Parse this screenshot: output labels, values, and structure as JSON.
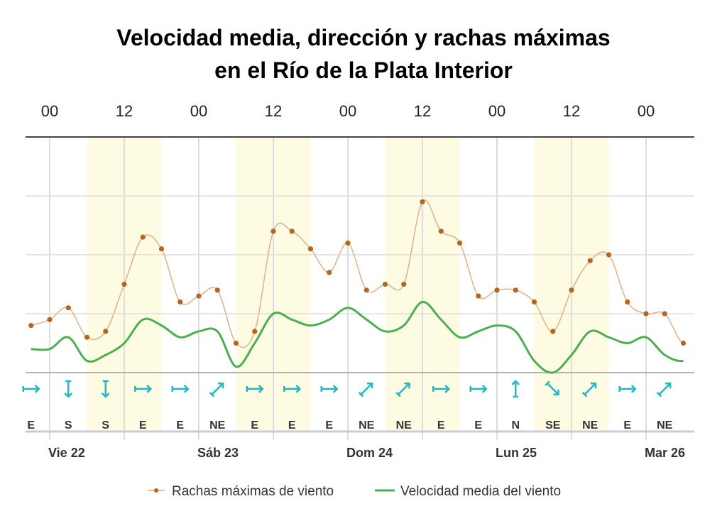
{
  "chart_data": {
    "type": "line",
    "title_lines": [
      "Velocidad media, dirección y rachas máximas",
      "en el Río de la Plata Interior"
    ],
    "hour_labels": [
      "00",
      "12",
      "00",
      "12",
      "00",
      "12",
      "00",
      "12",
      "00"
    ],
    "day_labels": [
      "Vie 22",
      "Sáb 23",
      "Dom 24",
      "Lun 25",
      "Mar 26"
    ],
    "x_hours": [
      -3,
      0,
      3,
      6,
      9,
      12,
      15,
      18,
      21,
      24,
      27,
      30,
      33,
      36,
      39,
      42,
      45,
      48,
      51,
      54,
      57,
      60,
      63,
      66,
      69,
      72,
      75,
      78,
      81,
      84,
      87,
      90,
      93,
      96,
      99,
      102,
      105,
      108,
      111
    ],
    "series": [
      {
        "name": "Rachas máximas de viento",
        "color": "#b5651d",
        "values": [
          8,
          9,
          11,
          6,
          7,
          15,
          23,
          21,
          12,
          13,
          14,
          5,
          7,
          24,
          24,
          21,
          17,
          22,
          14,
          15,
          15,
          29,
          24,
          22,
          13,
          14,
          14,
          12,
          7,
          14,
          19,
          20,
          12,
          10,
          10,
          5,
          8
        ]
      },
      {
        "name": "Velocidad media del viento",
        "color": "#4caf50",
        "values": [
          4,
          4,
          6,
          2,
          3,
          5,
          9,
          8,
          6,
          7,
          7,
          1,
          5,
          10,
          9,
          8,
          9,
          11,
          9,
          7,
          8,
          12,
          9,
          6,
          7,
          8,
          7,
          2,
          0,
          3,
          7,
          6,
          5,
          6,
          3,
          2,
          4
        ]
      }
    ],
    "directions": [
      {
        "dir": "E",
        "deg": 270
      },
      {
        "dir": "S",
        "deg": 0
      },
      {
        "dir": "S",
        "deg": 0
      },
      {
        "dir": "E",
        "deg": 270
      },
      {
        "dir": "E",
        "deg": 270
      },
      {
        "dir": "NE",
        "deg": 225
      },
      {
        "dir": "E",
        "deg": 270
      },
      {
        "dir": "E",
        "deg": 270
      },
      {
        "dir": "E",
        "deg": 270
      },
      {
        "dir": "NE",
        "deg": 225
      },
      {
        "dir": "NE",
        "deg": 225
      },
      {
        "dir": "E",
        "deg": 270
      },
      {
        "dir": "E",
        "deg": 270
      },
      {
        "dir": "N",
        "deg": 180
      },
      {
        "dir": "SE",
        "deg": 315
      },
      {
        "dir": "NE",
        "deg": 225
      },
      {
        "dir": "E",
        "deg": 270
      },
      {
        "dir": "NE",
        "deg": 225
      }
    ],
    "daylight_hours": [
      [
        6,
        18
      ],
      [
        30,
        42
      ],
      [
        54,
        66
      ],
      [
        78,
        90
      ]
    ],
    "ylim": [
      0,
      40
    ],
    "grid": true,
    "legend_position": "bottom",
    "colors": {
      "daylight": "#fdfbe2",
      "grid": "#dddddd",
      "arrow": "#1fb9c6",
      "axis_line": "#444444",
      "bottom_axis": "#c5cbe0"
    }
  }
}
